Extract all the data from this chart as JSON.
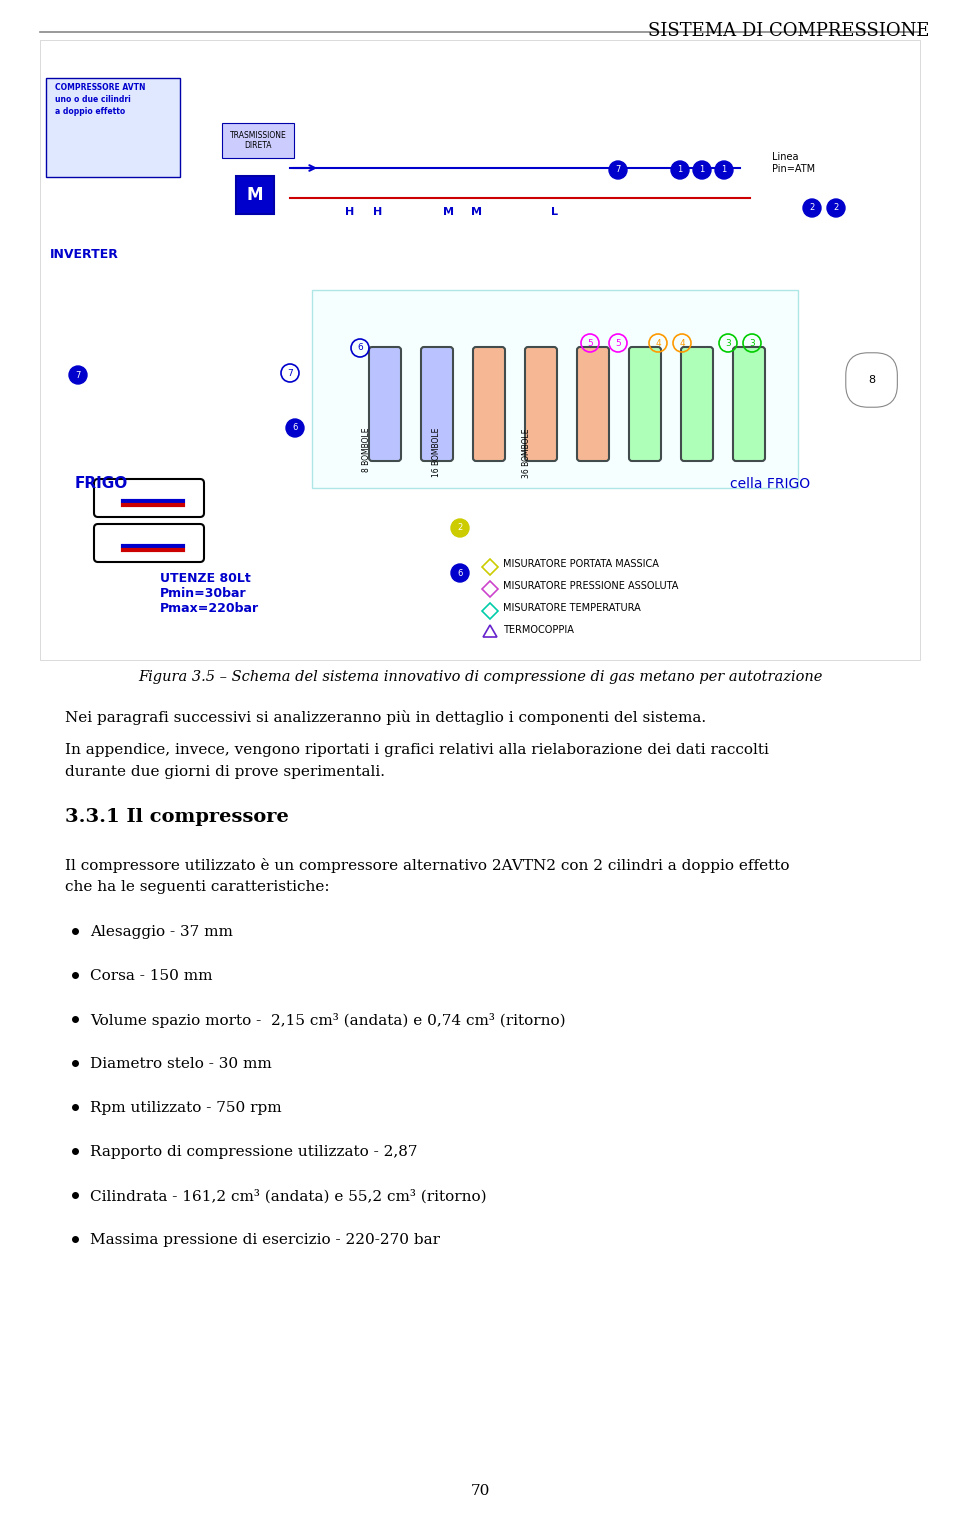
{
  "header_text": "SISTEMA DI COMPRESSIONE",
  "header_fontsize": 13,
  "header_color": "#000000",
  "fig_caption": "Figura 3.5 – Schema del sistema innovativo di compressione di gas metano per autotrazione",
  "para1": "Nei paragrafi successivi si analizzeranno più in dettaglio i componenti del sistema.",
  "para2_line1": "In appendice, invece, vengono riportati i grafici relativi alla rielaborazione dei dati raccolti",
  "para2_line2": "durante due giorni di prove sperimentali.",
  "section_title": "3.3.1 Il compressore",
  "section_body_line1": "Il compressore utilizzato è un compressore alternativo 2AVTN2 con 2 cilindri a doppio effetto",
  "section_body_line2": "che ha le seguenti caratteristiche:",
  "bullet_points": [
    "Alesaggio - 37 mm",
    "Corsa - 150 mm",
    "Volume spazio morto -  2,15 cm³ (andata) e 0,74 cm³ (ritorno)",
    "Diametro stelo - 30 mm",
    "Rpm utilizzato - 750 rpm",
    "Rapporto di compressione utilizzato - 2,87",
    "Cilindrata - 161,2 cm³ (andata) e 55,2 cm³ (ritorno)",
    "Massima pressione di esercizio - 220-270 bar"
  ],
  "page_number": "70",
  "background_color": "#ffffff",
  "text_color": "#000000",
  "body_fontsize": 11,
  "section_fontsize": 14,
  "line_color": "#888888",
  "diagram_border_color": "#cccccc"
}
